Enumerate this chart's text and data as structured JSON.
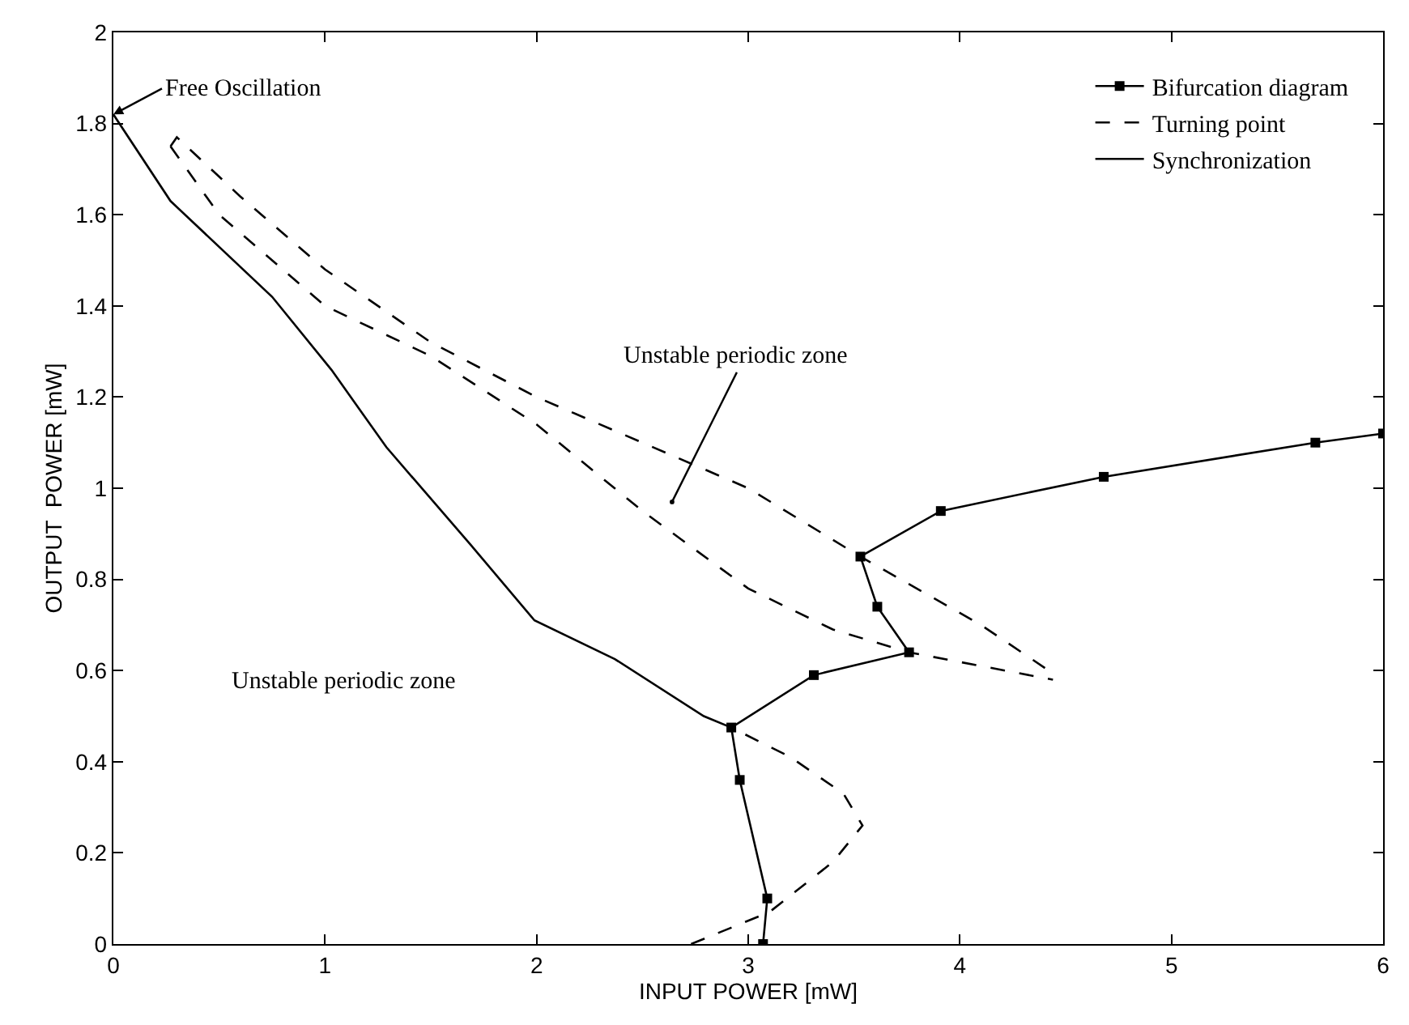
{
  "chart_data": {
    "type": "line",
    "xlabel": "INPUT POWER [mW]",
    "ylabel": "OUTPUT  POWER [mW]",
    "xlim": [
      0,
      6
    ],
    "xticks": [
      0,
      1,
      2,
      3,
      4,
      5,
      6
    ],
    "ylim": [
      0,
      2
    ],
    "yticks": [
      0,
      0.2,
      0.4,
      0.6,
      0.8,
      1,
      1.2,
      1.4,
      1.6,
      1.8,
      2
    ],
    "legend": "top right",
    "series": [
      {
        "name": "Bifurcation diagram",
        "color": "#000000",
        "marker": "square",
        "line_style": "solid",
        "x": [
          3.07,
          3.09,
          2.96,
          2.92,
          3.31,
          3.76,
          3.61,
          3.53,
          3.91,
          4.68,
          5.68,
          6
        ],
        "values": [
          0,
          0.1,
          0.36,
          0.475,
          0.59,
          0.64,
          0.74,
          0.85,
          0.95,
          1.025,
          1.1,
          1.12
        ]
      },
      {
        "name": "Turning point",
        "color": "#000000",
        "marker": "none",
        "line_style": "dashed",
        "x": [
          2.73,
          3.1,
          3.4,
          3.54,
          3.45,
          3.2,
          2.92
        ],
        "values": [
          0,
          0.07,
          0.18,
          0.26,
          0.33,
          0.41,
          0.475
        ]
      },
      {
        "name": "Synchronization",
        "color": "#000000",
        "marker": "none",
        "line_style": "solid",
        "x": [
          0,
          0.27,
          0.75,
          1.03,
          1.29,
          1.69,
          1.99,
          2.37,
          2.79,
          2.92
        ],
        "values": [
          1.82,
          1.63,
          1.42,
          1.26,
          1.09,
          0.875,
          0.71,
          0.625,
          0.5,
          0.475
        ]
      },
      {
        "color": "#000000",
        "marker": "none",
        "line_style": "dashed",
        "x": [
          0.27,
          0.3,
          0.6,
          1.0,
          1.5,
          2.0,
          2.5,
          3.0,
          3.53,
          4.1,
          4.42,
          4.44
        ],
        "values": [
          1.75,
          1.77,
          1.64,
          1.48,
          1.32,
          1.2,
          1.1,
          1.0,
          0.85,
          0.7,
          0.6,
          0.58
        ]
      },
      {
        "color": "#000000",
        "marker": "none",
        "line_style": "dashed",
        "x": [
          0.27,
          0.5,
          1.0,
          1.5,
          2.0,
          2.5,
          3.0,
          3.4,
          3.76,
          4.1,
          4.44
        ],
        "values": [
          1.75,
          1.6,
          1.4,
          1.29,
          1.14,
          0.95,
          0.78,
          0.69,
          0.64,
          0.61,
          0.58
        ]
      }
    ],
    "annotations": [
      {
        "text": "Free Oscillation",
        "x": 0,
        "y": 1.82
      },
      "Unstable periodic zone",
      "Unstable periodic zone"
    ]
  }
}
